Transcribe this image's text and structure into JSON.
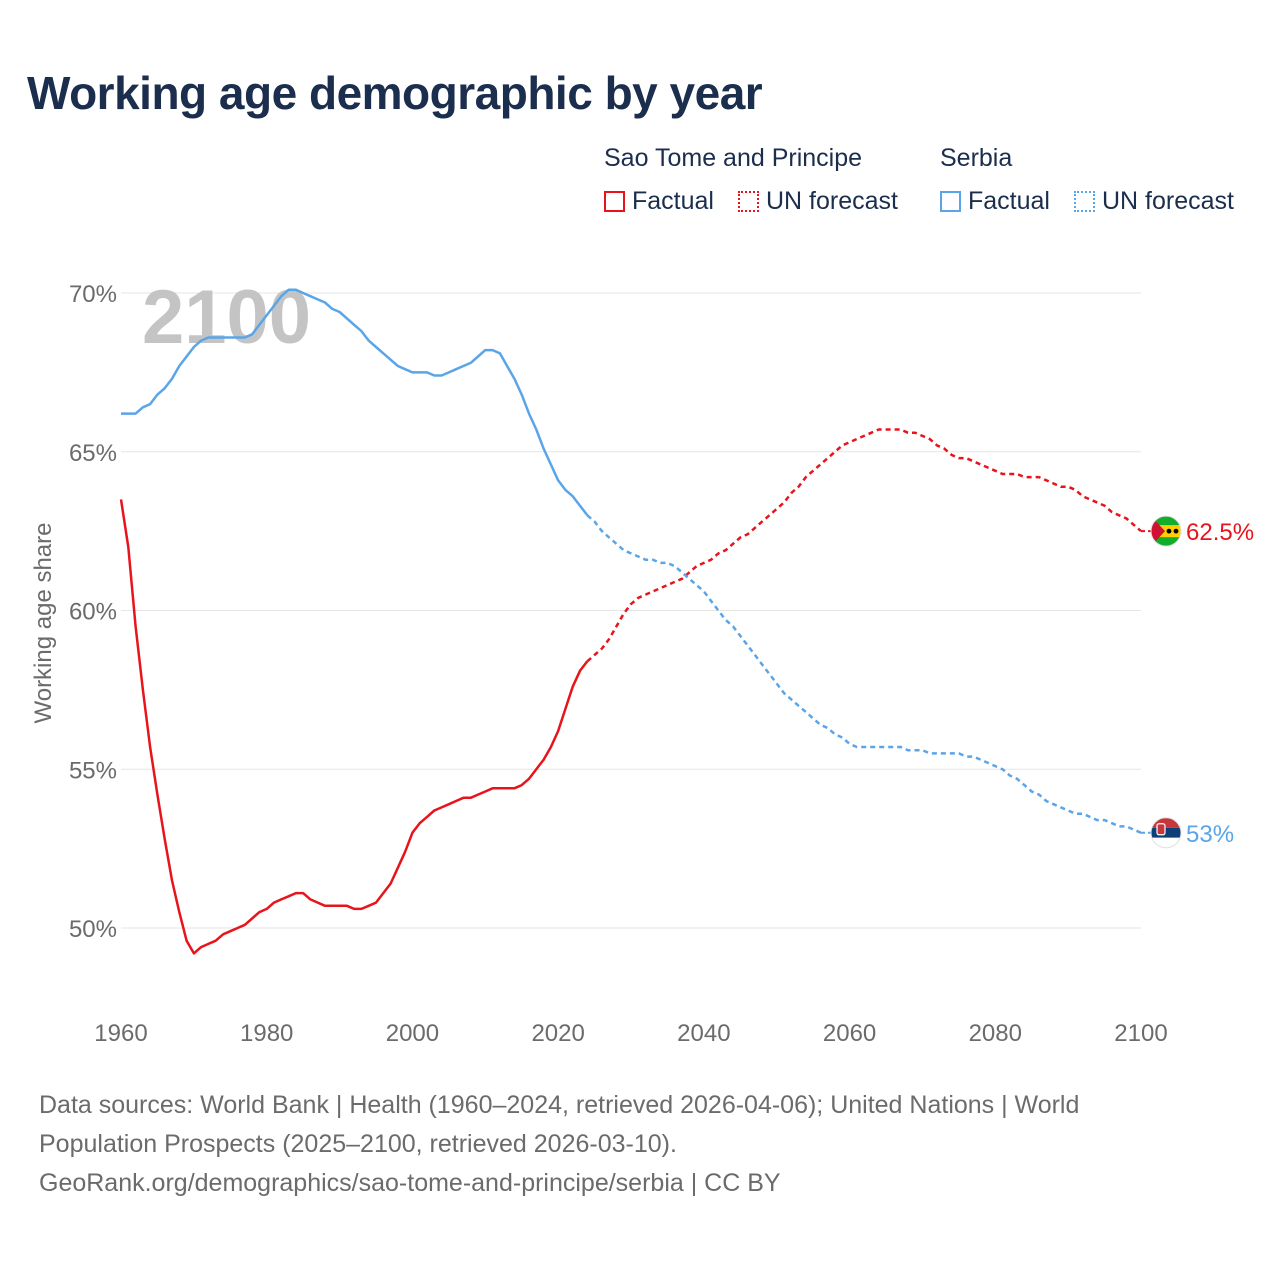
{
  "title": "Working age demographic by year",
  "legend": {
    "groups": [
      {
        "name": "Sao Tome and Principe",
        "color": "#e8141c",
        "items": [
          {
            "label": "Factual",
            "style": "solid"
          },
          {
            "label": "UN forecast",
            "style": "dotted"
          }
        ]
      },
      {
        "name": "Serbia",
        "color": "#5aa5e8",
        "items": [
          {
            "label": "Factual",
            "style": "solid"
          },
          {
            "label": "UN forecast",
            "style": "dotted"
          }
        ]
      }
    ]
  },
  "year_watermark": "2100",
  "chart_data": {
    "type": "line",
    "title": "Working age demographic by year",
    "xlabel": "",
    "ylabel": "Working age share",
    "xlim": [
      1960,
      2100
    ],
    "ylim": [
      47.5,
      71
    ],
    "x_ticks": [
      1960,
      1980,
      2000,
      2020,
      2040,
      2060,
      2080,
      2100
    ],
    "x_tick_labels": [
      "1960",
      "1980",
      "2000",
      "2020",
      "2040",
      "2060",
      "2080",
      "2100"
    ],
    "y_ticks": [
      50,
      55,
      60,
      65,
      70
    ],
    "y_tick_labels": [
      "50%",
      "55%",
      "60%",
      "65%",
      "70%"
    ],
    "grid": true,
    "forecast_start": 2024,
    "series": [
      {
        "name": "Sao Tome and Principe",
        "color": "#e8141c",
        "flag_icon": "sao-tome-and-principe-flag-icon",
        "end_label": "62.5%",
        "points": [
          [
            1960,
            63.5
          ],
          [
            1961,
            62
          ],
          [
            1962,
            59.5
          ],
          [
            1963,
            57.5
          ],
          [
            1964,
            55.7
          ],
          [
            1965,
            54.2
          ],
          [
            1966,
            52.8
          ],
          [
            1967,
            51.5
          ],
          [
            1968,
            50.5
          ],
          [
            1969,
            49.6
          ],
          [
            1970,
            49.2
          ],
          [
            1971,
            49.4
          ],
          [
            1972,
            49.5
          ],
          [
            1973,
            49.6
          ],
          [
            1974,
            49.8
          ],
          [
            1975,
            49.9
          ],
          [
            1976,
            50
          ],
          [
            1977,
            50.1
          ],
          [
            1978,
            50.3
          ],
          [
            1979,
            50.5
          ],
          [
            1980,
            50.6
          ],
          [
            1981,
            50.8
          ],
          [
            1982,
            50.9
          ],
          [
            1983,
            51
          ],
          [
            1984,
            51.1
          ],
          [
            1985,
            51.1
          ],
          [
            1986,
            50.9
          ],
          [
            1987,
            50.8
          ],
          [
            1988,
            50.7
          ],
          [
            1989,
            50.7
          ],
          [
            1990,
            50.7
          ],
          [
            1991,
            50.7
          ],
          [
            1992,
            50.6
          ],
          [
            1993,
            50.6
          ],
          [
            1994,
            50.7
          ],
          [
            1995,
            50.8
          ],
          [
            1996,
            51.1
          ],
          [
            1997,
            51.4
          ],
          [
            1998,
            51.9
          ],
          [
            1999,
            52.4
          ],
          [
            2000,
            53
          ],
          [
            2001,
            53.3
          ],
          [
            2002,
            53.5
          ],
          [
            2003,
            53.7
          ],
          [
            2004,
            53.8
          ],
          [
            2005,
            53.9
          ],
          [
            2006,
            54
          ],
          [
            2007,
            54.1
          ],
          [
            2008,
            54.1
          ],
          [
            2009,
            54.2
          ],
          [
            2010,
            54.3
          ],
          [
            2011,
            54.4
          ],
          [
            2012,
            54.4
          ],
          [
            2013,
            54.4
          ],
          [
            2014,
            54.4
          ],
          [
            2015,
            54.5
          ],
          [
            2016,
            54.7
          ],
          [
            2017,
            55
          ],
          [
            2018,
            55.3
          ],
          [
            2019,
            55.7
          ],
          [
            2020,
            56.2
          ],
          [
            2021,
            56.9
          ],
          [
            2022,
            57.6
          ],
          [
            2023,
            58.1
          ],
          [
            2024,
            58.4
          ],
          [
            2025,
            58.6
          ],
          [
            2026,
            58.8
          ],
          [
            2027,
            59.1
          ],
          [
            2028,
            59.5
          ],
          [
            2029,
            59.9
          ],
          [
            2030,
            60.2
          ],
          [
            2031,
            60.4
          ],
          [
            2032,
            60.5
          ],
          [
            2033,
            60.6
          ],
          [
            2034,
            60.7
          ],
          [
            2035,
            60.8
          ],
          [
            2036,
            60.9
          ],
          [
            2037,
            61
          ],
          [
            2038,
            61.2
          ],
          [
            2039,
            61.4
          ],
          [
            2040,
            61.5
          ],
          [
            2041,
            61.6
          ],
          [
            2042,
            61.8
          ],
          [
            2043,
            61.9
          ],
          [
            2044,
            62.1
          ],
          [
            2045,
            62.3
          ],
          [
            2046,
            62.4
          ],
          [
            2047,
            62.6
          ],
          [
            2048,
            62.8
          ],
          [
            2049,
            63
          ],
          [
            2050,
            63.2
          ],
          [
            2051,
            63.4
          ],
          [
            2052,
            63.7
          ],
          [
            2053,
            63.9
          ],
          [
            2054,
            64.2
          ],
          [
            2055,
            64.4
          ],
          [
            2056,
            64.6
          ],
          [
            2057,
            64.8
          ],
          [
            2058,
            65
          ],
          [
            2059,
            65.2
          ],
          [
            2060,
            65.3
          ],
          [
            2061,
            65.4
          ],
          [
            2062,
            65.5
          ],
          [
            2063,
            65.6
          ],
          [
            2064,
            65.7
          ],
          [
            2065,
            65.7
          ],
          [
            2066,
            65.7
          ],
          [
            2067,
            65.7
          ],
          [
            2068,
            65.6
          ],
          [
            2069,
            65.6
          ],
          [
            2070,
            65.5
          ],
          [
            2071,
            65.4
          ],
          [
            2072,
            65.2
          ],
          [
            2073,
            65.1
          ],
          [
            2074,
            64.9
          ],
          [
            2075,
            64.8
          ],
          [
            2076,
            64.8
          ],
          [
            2077,
            64.7
          ],
          [
            2078,
            64.6
          ],
          [
            2079,
            64.5
          ],
          [
            2080,
            64.4
          ],
          [
            2081,
            64.3
          ],
          [
            2082,
            64.3
          ],
          [
            2083,
            64.3
          ],
          [
            2084,
            64.2
          ],
          [
            2085,
            64.2
          ],
          [
            2086,
            64.2
          ],
          [
            2087,
            64.1
          ],
          [
            2088,
            64
          ],
          [
            2089,
            63.9
          ],
          [
            2090,
            63.9
          ],
          [
            2091,
            63.8
          ],
          [
            2092,
            63.6
          ],
          [
            2093,
            63.5
          ],
          [
            2094,
            63.4
          ],
          [
            2095,
            63.3
          ],
          [
            2096,
            63.1
          ],
          [
            2097,
            63
          ],
          [
            2098,
            62.9
          ],
          [
            2099,
            62.7
          ],
          [
            2100,
            62.5
          ]
        ]
      },
      {
        "name": "Serbia",
        "color": "#5aa5e8",
        "flag_icon": "serbia-flag-icon",
        "end_label": "53%",
        "points": [
          [
            1960,
            66.2
          ],
          [
            1961,
            66.2
          ],
          [
            1962,
            66.2
          ],
          [
            1963,
            66.4
          ],
          [
            1964,
            66.5
          ],
          [
            1965,
            66.8
          ],
          [
            1966,
            67
          ],
          [
            1967,
            67.3
          ],
          [
            1968,
            67.7
          ],
          [
            1969,
            68
          ],
          [
            1970,
            68.3
          ],
          [
            1971,
            68.5
          ],
          [
            1972,
            68.6
          ],
          [
            1973,
            68.6
          ],
          [
            1974,
            68.6
          ],
          [
            1975,
            68.6
          ],
          [
            1976,
            68.6
          ],
          [
            1977,
            68.6
          ],
          [
            1978,
            68.7
          ],
          [
            1979,
            69
          ],
          [
            1980,
            69.3
          ],
          [
            1981,
            69.6
          ],
          [
            1982,
            69.9
          ],
          [
            1983,
            70.1
          ],
          [
            1984,
            70.1
          ],
          [
            1985,
            70
          ],
          [
            1986,
            69.9
          ],
          [
            1987,
            69.8
          ],
          [
            1988,
            69.7
          ],
          [
            1989,
            69.5
          ],
          [
            1990,
            69.4
          ],
          [
            1991,
            69.2
          ],
          [
            1992,
            69
          ],
          [
            1993,
            68.8
          ],
          [
            1994,
            68.5
          ],
          [
            1995,
            68.3
          ],
          [
            1996,
            68.1
          ],
          [
            1997,
            67.9
          ],
          [
            1998,
            67.7
          ],
          [
            1999,
            67.6
          ],
          [
            2000,
            67.5
          ],
          [
            2001,
            67.5
          ],
          [
            2002,
            67.5
          ],
          [
            2003,
            67.4
          ],
          [
            2004,
            67.4
          ],
          [
            2005,
            67.5
          ],
          [
            2006,
            67.6
          ],
          [
            2007,
            67.7
          ],
          [
            2008,
            67.8
          ],
          [
            2009,
            68
          ],
          [
            2010,
            68.2
          ],
          [
            2011,
            68.2
          ],
          [
            2012,
            68.1
          ],
          [
            2013,
            67.7
          ],
          [
            2014,
            67.3
          ],
          [
            2015,
            66.8
          ],
          [
            2016,
            66.2
          ],
          [
            2017,
            65.7
          ],
          [
            2018,
            65.1
          ],
          [
            2019,
            64.6
          ],
          [
            2020,
            64.1
          ],
          [
            2021,
            63.8
          ],
          [
            2022,
            63.6
          ],
          [
            2023,
            63.3
          ],
          [
            2024,
            63
          ],
          [
            2025,
            62.8
          ],
          [
            2026,
            62.5
          ],
          [
            2027,
            62.3
          ],
          [
            2028,
            62.1
          ],
          [
            2029,
            61.9
          ],
          [
            2030,
            61.8
          ],
          [
            2031,
            61.7
          ],
          [
            2032,
            61.6
          ],
          [
            2033,
            61.6
          ],
          [
            2034,
            61.5
          ],
          [
            2035,
            61.5
          ],
          [
            2036,
            61.4
          ],
          [
            2037,
            61.2
          ],
          [
            2038,
            61
          ],
          [
            2039,
            60.8
          ],
          [
            2040,
            60.6
          ],
          [
            2041,
            60.3
          ],
          [
            2042,
            60
          ],
          [
            2043,
            59.7
          ],
          [
            2044,
            59.5
          ],
          [
            2045,
            59.2
          ],
          [
            2046,
            58.9
          ],
          [
            2047,
            58.6
          ],
          [
            2048,
            58.3
          ],
          [
            2049,
            58
          ],
          [
            2050,
            57.7
          ],
          [
            2051,
            57.4
          ],
          [
            2052,
            57.2
          ],
          [
            2053,
            57
          ],
          [
            2054,
            56.8
          ],
          [
            2055,
            56.6
          ],
          [
            2056,
            56.4
          ],
          [
            2057,
            56.3
          ],
          [
            2058,
            56.1
          ],
          [
            2059,
            56
          ],
          [
            2060,
            55.8
          ],
          [
            2061,
            55.7
          ],
          [
            2062,
            55.7
          ],
          [
            2063,
            55.7
          ],
          [
            2064,
            55.7
          ],
          [
            2065,
            55.7
          ],
          [
            2066,
            55.7
          ],
          [
            2067,
            55.7
          ],
          [
            2068,
            55.6
          ],
          [
            2069,
            55.6
          ],
          [
            2070,
            55.6
          ],
          [
            2071,
            55.5
          ],
          [
            2072,
            55.5
          ],
          [
            2073,
            55.5
          ],
          [
            2074,
            55.5
          ],
          [
            2075,
            55.5
          ],
          [
            2076,
            55.4
          ],
          [
            2077,
            55.4
          ],
          [
            2078,
            55.3
          ],
          [
            2079,
            55.2
          ],
          [
            2080,
            55.1
          ],
          [
            2081,
            55
          ],
          [
            2082,
            54.8
          ],
          [
            2083,
            54.7
          ],
          [
            2084,
            54.5
          ],
          [
            2085,
            54.3
          ],
          [
            2086,
            54.2
          ],
          [
            2087,
            54
          ],
          [
            2088,
            53.9
          ],
          [
            2089,
            53.8
          ],
          [
            2090,
            53.7
          ],
          [
            2091,
            53.6
          ],
          [
            2092,
            53.6
          ],
          [
            2093,
            53.5
          ],
          [
            2094,
            53.4
          ],
          [
            2095,
            53.4
          ],
          [
            2096,
            53.3
          ],
          [
            2097,
            53.2
          ],
          [
            2098,
            53.2
          ],
          [
            2099,
            53.1
          ],
          [
            2100,
            53
          ]
        ]
      }
    ]
  },
  "footer": {
    "line1": "Data sources: World Bank | Health (1960–2024, retrieved 2026-04-06); United Nations | World",
    "line2": "Population Prospects (2025–2100, retrieved 2026-03-10).",
    "line3": "GeoRank.org/demographics/sao-tome-and-principe/serbia | CC BY"
  }
}
